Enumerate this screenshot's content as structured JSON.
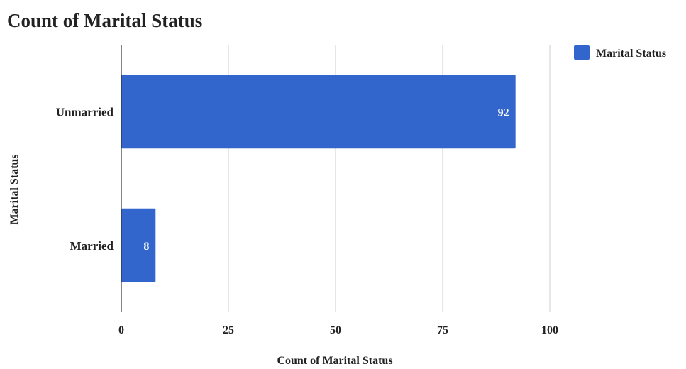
{
  "chart_data": {
    "type": "bar",
    "orientation": "horizontal",
    "title": "Count of Marital Status",
    "xlabel": "Count of Marital Status",
    "ylabel": "Marital Status",
    "categories": [
      "Unmarried",
      "Married"
    ],
    "series": [
      {
        "name": "Marital Status",
        "values": [
          92,
          8
        ],
        "color": "#3366cc"
      }
    ],
    "xlim": [
      0,
      100
    ],
    "xticks": [
      0,
      25,
      50,
      75,
      100
    ],
    "grid": true,
    "legend": "top-right",
    "data_labels": true
  }
}
